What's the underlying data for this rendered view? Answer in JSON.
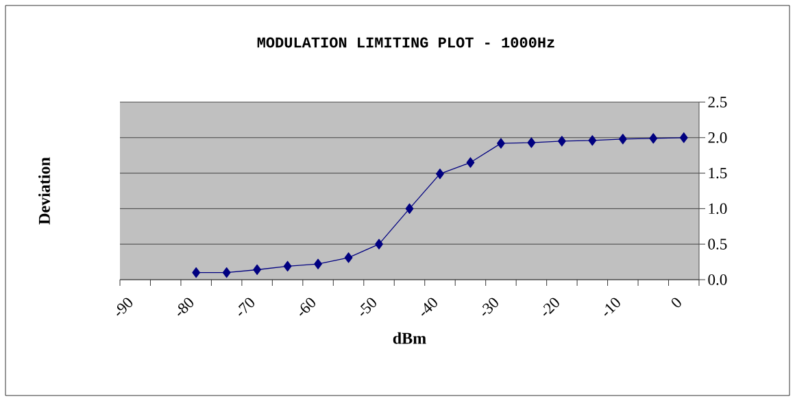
{
  "chart_data": {
    "type": "line",
    "title": "MODULATION LIMITING PLOT - 1000Hz",
    "xlabel": "dBm",
    "ylabel": "Deviation",
    "x": [
      -77.5,
      -72.5,
      -67.5,
      -62.5,
      -57.5,
      -52.5,
      -47.5,
      -42.5,
      -37.5,
      -32.5,
      -27.5,
      -22.5,
      -17.5,
      -12.5,
      -7.5,
      -2.5,
      2.5
    ],
    "series": [
      {
        "color": "#000080",
        "values": [
          0.1,
          0.1,
          0.14,
          0.19,
          0.22,
          0.31,
          0.5,
          1.0,
          1.49,
          1.65,
          1.92,
          1.93,
          1.95,
          1.96,
          1.98,
          1.99,
          2.0
        ]
      }
    ],
    "xlim": [
      -90,
      5
    ],
    "xticks": [
      -90,
      -80,
      -70,
      -60,
      -50,
      -40,
      -30,
      -20,
      -10,
      0,
      {
        "value": -85,
        "label": null
      },
      {
        "value": -75,
        "label": null
      },
      {
        "value": -65,
        "label": null
      },
      {
        "value": -55,
        "label": null
      },
      {
        "value": -45,
        "label": null
      },
      {
        "value": -35,
        "label": null
      },
      {
        "value": -25,
        "label": null
      },
      {
        "value": -15,
        "label": null
      },
      {
        "value": -5,
        "label": null
      },
      {
        "value": 5,
        "label": null
      }
    ],
    "ylim": [
      0,
      2.5
    ],
    "yticks": [
      {
        "value": 0,
        "label": "0.0"
      },
      {
        "value": 0.5,
        "label": "0.5"
      },
      {
        "value": 1,
        "label": "1.0"
      },
      {
        "value": 1.5,
        "label": "1.5"
      },
      {
        "value": 2,
        "label": "2.0"
      },
      {
        "value": 2.5,
        "label": "2.5"
      }
    ],
    "grid": "y",
    "marker": "diamond",
    "line_style": "solid"
  }
}
